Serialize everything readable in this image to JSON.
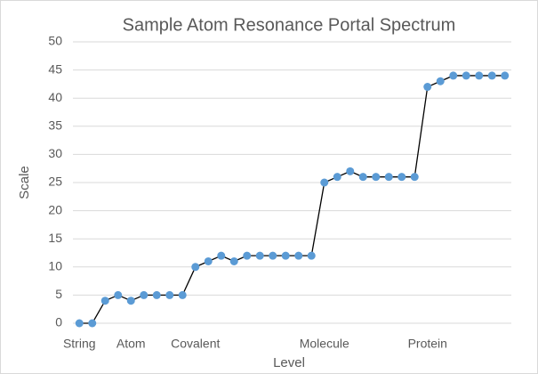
{
  "chart_data": {
    "type": "line",
    "title": "Sample Atom Resonance Portal Spectrum",
    "x_label": "Level",
    "y_label": "Scale",
    "categories": [
      "String",
      null,
      null,
      null,
      "Atom",
      null,
      null,
      null,
      null,
      "Covalent",
      null,
      null,
      null,
      null,
      null,
      null,
      null,
      null,
      null,
      "Molecule",
      null,
      null,
      null,
      null,
      null,
      null,
      null,
      "Protein",
      null,
      null,
      null,
      null,
      null,
      null
    ],
    "series": [
      {
        "name": "Scale",
        "color": "#5b9bd5",
        "line_color": "#000000",
        "values": [
          0,
          0,
          4,
          5,
          4,
          5,
          5,
          5,
          5,
          10,
          11,
          12,
          11,
          12,
          12,
          12,
          12,
          12,
          12,
          25,
          26,
          27,
          26,
          26,
          26,
          26,
          26,
          42,
          43,
          44,
          44,
          44,
          44,
          44
        ]
      }
    ],
    "ylim": [
      0,
      50
    ],
    "yticks": [
      0,
      5,
      10,
      15,
      20,
      25,
      30,
      35,
      40,
      45,
      50
    ],
    "grid": true
  }
}
